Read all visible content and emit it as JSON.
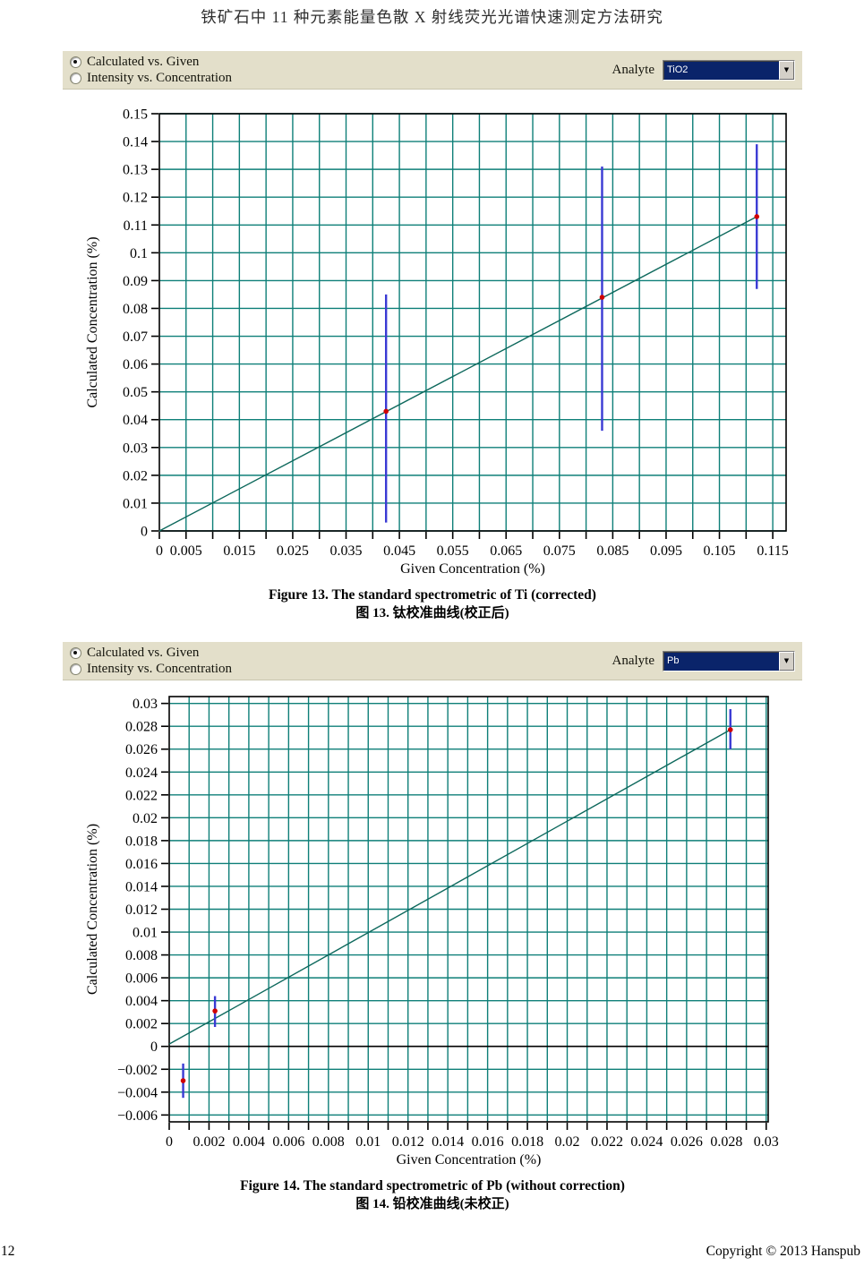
{
  "page": {
    "header_title": "铁矿石中 11 种元素能量色散 X 射线荧光光谱快速测定方法研究",
    "footer": {
      "page_number": "12",
      "copyright": "Copyright © 2013 Hanspub"
    },
    "colors": {
      "toolbar_bg": "#e3dfca",
      "combo_selection_bg": "#0a246a",
      "grid": "#0e7f78",
      "calibration_line": "#0d685c",
      "error_bar": "#3a3ad4",
      "data_point": "#d00000"
    }
  },
  "panels": [
    {
      "radio_options": [
        {
          "label": "Calculated vs. Given",
          "selected": true
        },
        {
          "label": "Intensity vs. Concentration",
          "selected": false
        }
      ],
      "analyte_label": "Analyte",
      "analyte_value": "TiO2",
      "dropdown_arrow": "▼",
      "caption_en": "Figure 13. The standard spectrometric of Ti (corrected)",
      "caption_zh": "图 13.  钛校准曲线(校正后)"
    },
    {
      "radio_options": [
        {
          "label": "Calculated vs. Given",
          "selected": true
        },
        {
          "label": "Intensity vs. Concentration",
          "selected": false
        }
      ],
      "analyte_label": "Analyte",
      "analyte_value": "Pb",
      "dropdown_arrow": "▼",
      "caption_en": "Figure 14. The standard spectrometric of Pb (without correction)",
      "caption_zh": "图 14.  铅校准曲线(未校正)"
    }
  ],
  "chart_data": [
    {
      "type": "scatter",
      "title": "",
      "xlabel": "Given Concentration (%)",
      "ylabel": "Calculated Concentration (%)",
      "xlim": [
        0,
        0.1175
      ],
      "ylim": [
        0,
        0.15
      ],
      "grid": true,
      "x_ticks": [
        0,
        0.005,
        0.01,
        0.015,
        0.02,
        0.025,
        0.03,
        0.035,
        0.04,
        0.045,
        0.05,
        0.055,
        0.06,
        0.065,
        0.07,
        0.075,
        0.08,
        0.085,
        0.09,
        0.095,
        0.1,
        0.105,
        0.11,
        0.115
      ],
      "x_labeled_ticks": [
        0,
        0.005,
        0.015,
        0.025,
        0.035,
        0.045,
        0.055,
        0.065,
        0.075,
        0.085,
        0.095,
        0.105,
        0.115
      ],
      "y_ticks": [
        0,
        0.01,
        0.02,
        0.03,
        0.04,
        0.05,
        0.06,
        0.07,
        0.08,
        0.09,
        0.1,
        0.11,
        0.12,
        0.13,
        0.14,
        0.15
      ],
      "zero_line": false,
      "regression_line": {
        "x": [
          0,
          0.112
        ],
        "y": [
          0,
          0.113
        ]
      },
      "points": [
        {
          "x": 0.0425,
          "y": 0.043,
          "err_low": 0.003,
          "err_high": 0.085
        },
        {
          "x": 0.083,
          "y": 0.084,
          "err_low": 0.036,
          "err_high": 0.131
        },
        {
          "x": 0.112,
          "y": 0.113,
          "err_low": 0.087,
          "err_high": 0.139
        }
      ]
    },
    {
      "type": "scatter",
      "title": "",
      "xlabel": "Given Concentration (%)",
      "ylabel": "Calculated Concentration (%)",
      "xlim": [
        0,
        0.0301
      ],
      "ylim": [
        -0.0066,
        0.0306
      ],
      "grid": true,
      "x_ticks": [
        0,
        0.001,
        0.002,
        0.003,
        0.004,
        0.005,
        0.006,
        0.007,
        0.008,
        0.009,
        0.01,
        0.011,
        0.012,
        0.013,
        0.014,
        0.015,
        0.016,
        0.017,
        0.018,
        0.019,
        0.02,
        0.021,
        0.022,
        0.023,
        0.024,
        0.025,
        0.026,
        0.027,
        0.028,
        0.029,
        0.03
      ],
      "x_labeled_ticks": [
        0,
        0.002,
        0.004,
        0.006,
        0.008,
        0.01,
        0.012,
        0.014,
        0.016,
        0.018,
        0.02,
        0.022,
        0.024,
        0.026,
        0.028,
        0.03
      ],
      "y_ticks": [
        -0.006,
        -0.004,
        -0.002,
        0,
        0.002,
        0.004,
        0.006,
        0.008,
        0.01,
        0.012,
        0.014,
        0.016,
        0.018,
        0.02,
        0.022,
        0.024,
        0.026,
        0.028,
        0.03
      ],
      "zero_line": true,
      "regression_line": {
        "x": [
          0,
          0.0282
        ],
        "y": [
          0.0002,
          0.0277
        ]
      },
      "points": [
        {
          "x": 0.0007,
          "y": -0.003,
          "err_low": -0.0045,
          "err_high": -0.0015
        },
        {
          "x": 0.0023,
          "y": 0.0031,
          "err_low": 0.0017,
          "err_high": 0.0044
        },
        {
          "x": 0.0282,
          "y": 0.0277,
          "err_low": 0.026,
          "err_high": 0.0295
        }
      ]
    }
  ]
}
